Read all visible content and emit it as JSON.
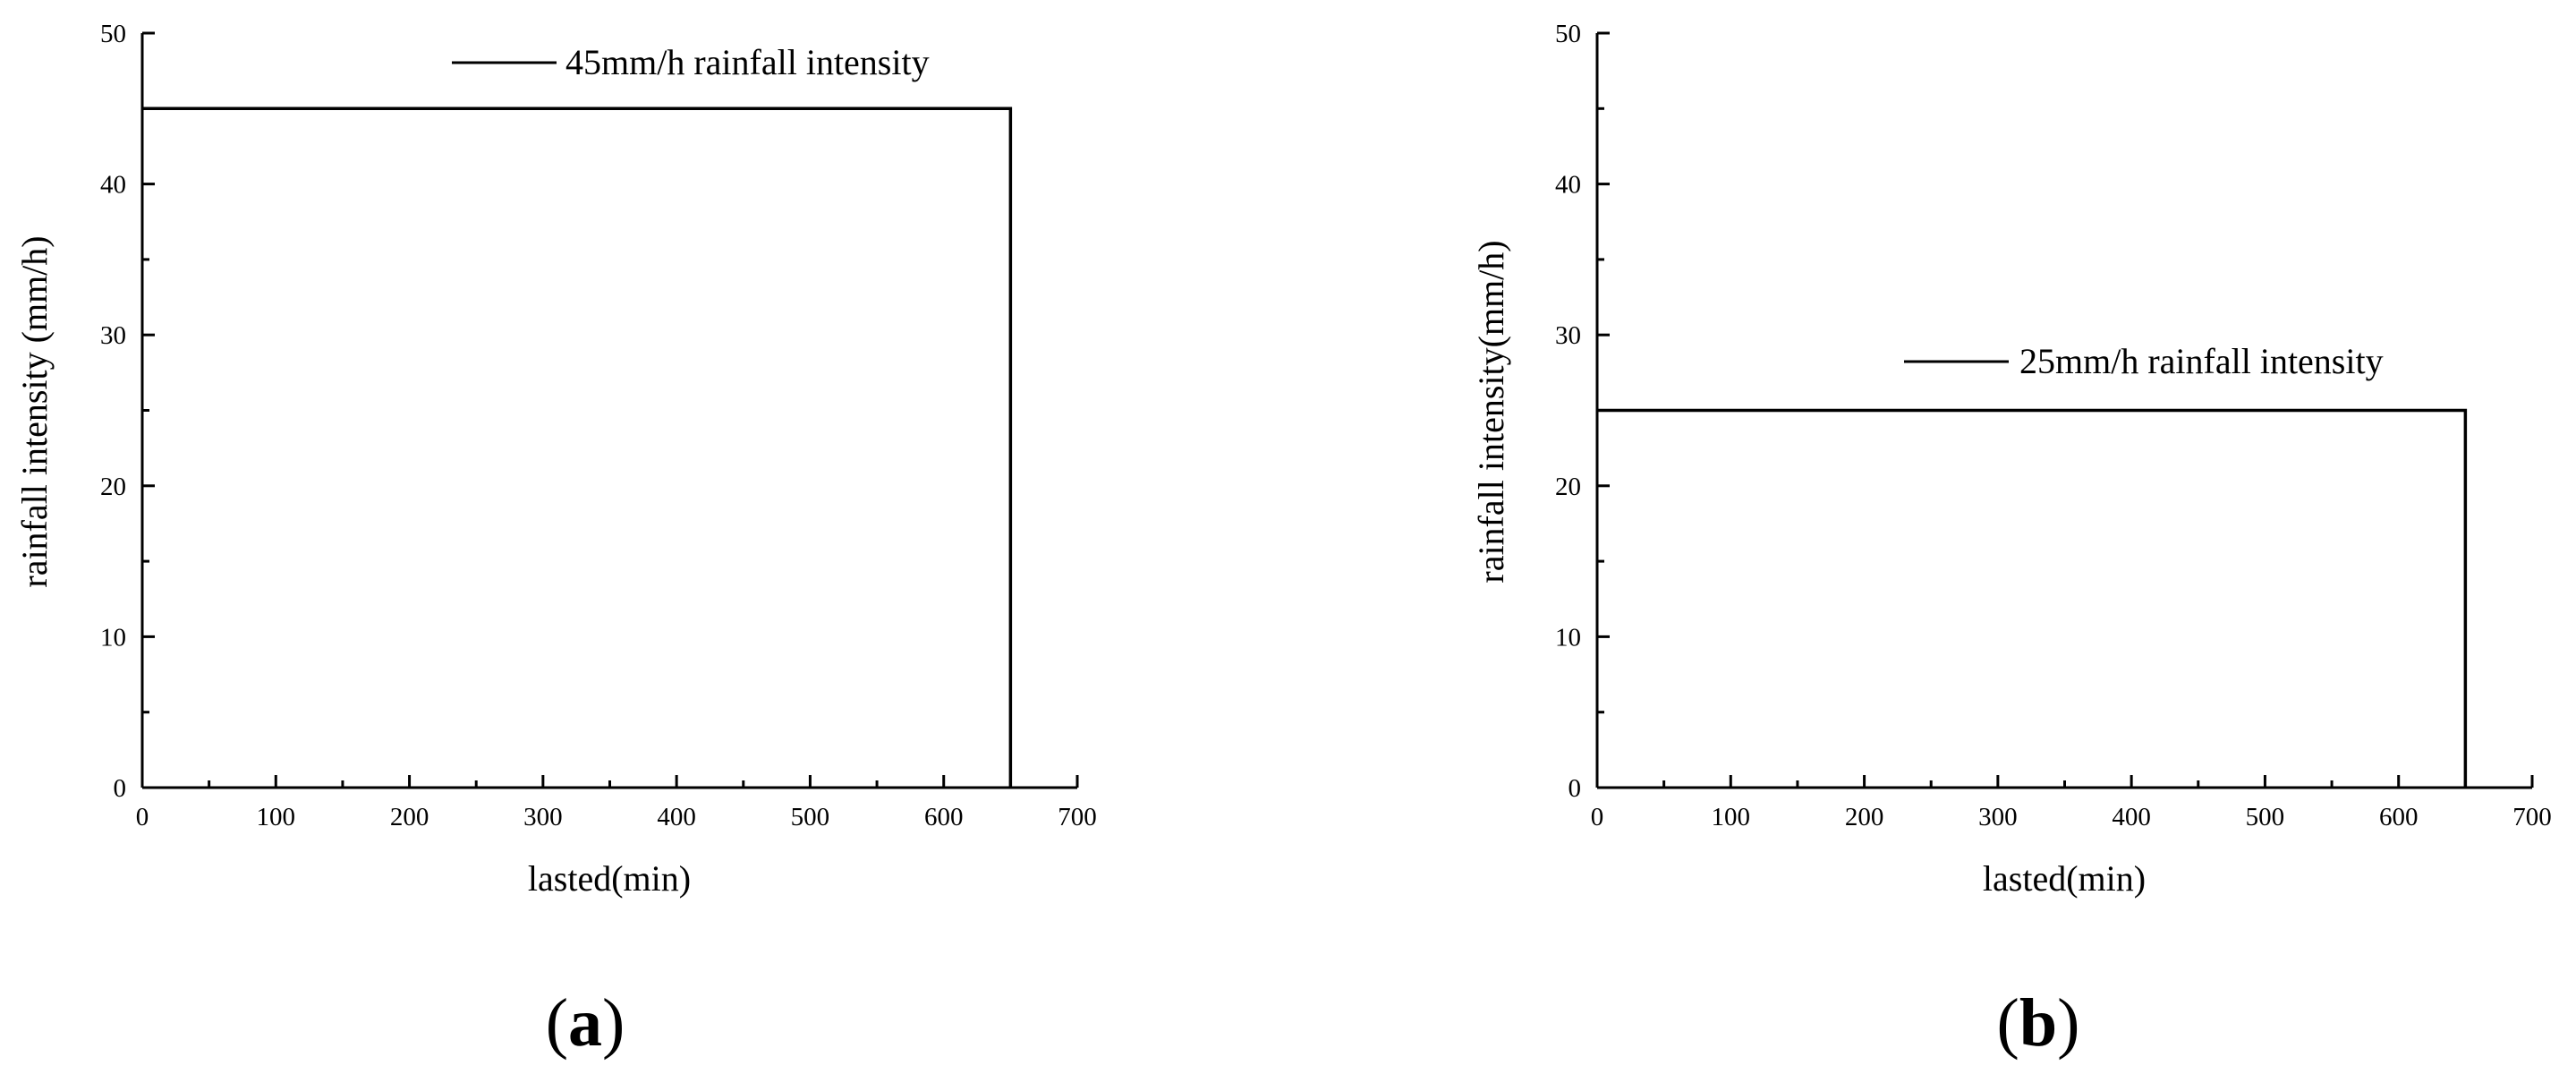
{
  "chart_data": [
    {
      "type": "line",
      "panel_label": "a",
      "xlabel": "lasted(min)",
      "ylabel": "rainfall intensity (mm/h)",
      "xlim": [
        0,
        700
      ],
      "ylim": [
        0,
        50
      ],
      "x_ticks": [
        0,
        100,
        200,
        300,
        400,
        500,
        600,
        700
      ],
      "y_ticks": [
        0,
        10,
        20,
        30,
        40,
        50
      ],
      "legend_placement": "top-right",
      "series": [
        {
          "name": "45mm/h rainfall intensity",
          "x": [
            0,
            650,
            650
          ],
          "y": [
            45,
            45,
            0
          ]
        }
      ]
    },
    {
      "type": "line",
      "panel_label": "b",
      "xlabel": "lasted(min)",
      "ylabel": "rainfall intensity(mm/h)",
      "xlim": [
        0,
        700
      ],
      "ylim": [
        0,
        50
      ],
      "x_ticks": [
        0,
        100,
        200,
        300,
        400,
        500,
        600,
        700
      ],
      "y_ticks": [
        0,
        10,
        20,
        30,
        40,
        50
      ],
      "legend_placement": "center-right",
      "series": [
        {
          "name": "25mm/h rainfall intensity",
          "x": [
            0,
            650,
            650
          ],
          "y": [
            25,
            25,
            0
          ]
        }
      ]
    }
  ]
}
